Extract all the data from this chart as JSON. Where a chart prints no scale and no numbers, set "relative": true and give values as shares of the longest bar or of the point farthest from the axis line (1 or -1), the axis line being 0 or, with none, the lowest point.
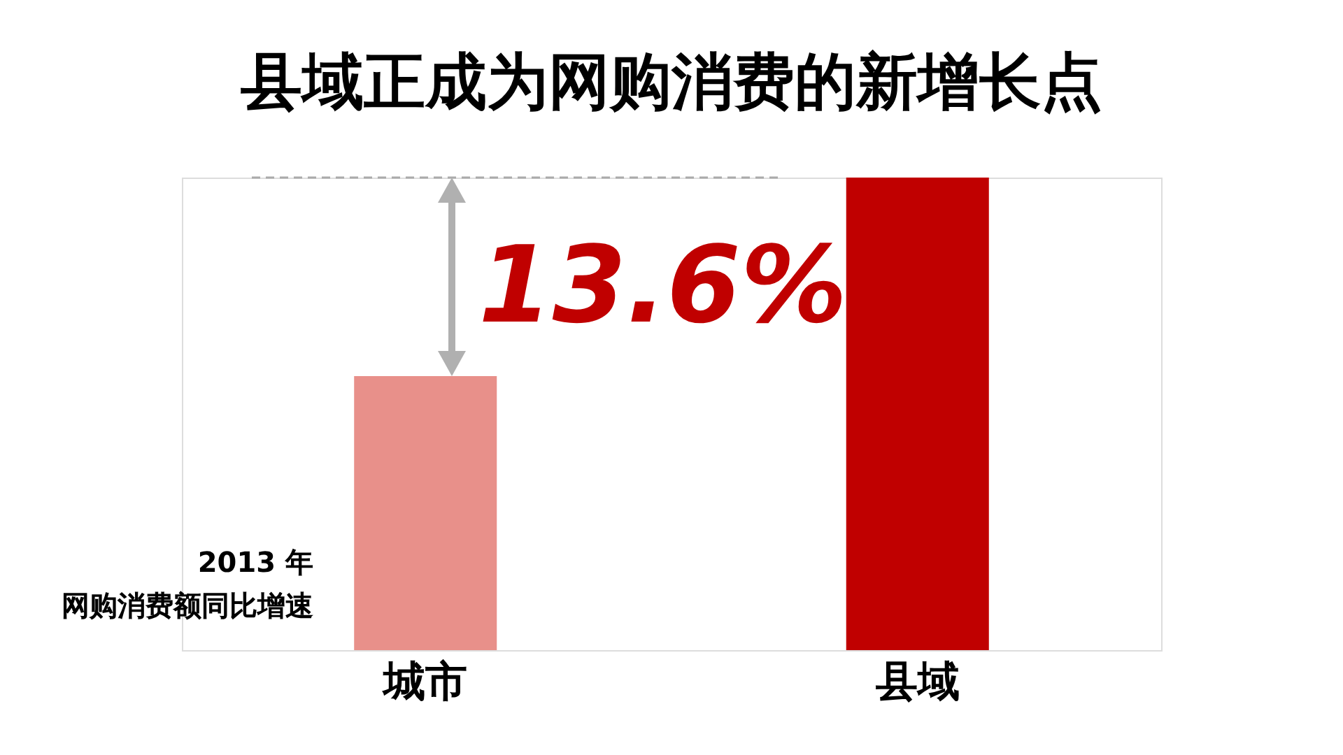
{
  "chart_data": {
    "type": "bar",
    "title": "县域正成为网购消费的新增长点",
    "categories": [
      "城市",
      "县域"
    ],
    "values": [
      0.58,
      1
    ],
    "colors": [
      "#e8908a",
      "#c00000"
    ],
    "relative": true,
    "annotations": [
      "13.6%",
      "2013 年",
      "网购消费额同比增速"
    ],
    "ref_lines": [
      {
        "axis": "y",
        "value": 1,
        "color": "#aaaaaa",
        "line_style": "dashed"
      }
    ],
    "legend": false,
    "grid": false
  }
}
